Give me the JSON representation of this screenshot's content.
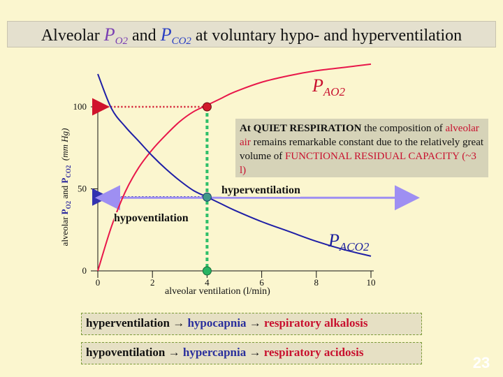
{
  "title": {
    "pre": "Alveolar",
    "sym1": "P",
    "sub1": "O2",
    "mid": "and",
    "sym2": "P",
    "sub2": "CO2",
    "post": "at voluntary hypo- and hyperventilation"
  },
  "colors": {
    "po2_curve": "#e8174a",
    "pco2_curve": "#1f1fa6",
    "dotted_red": "#d0132c",
    "dotted_blue": "#3232b0",
    "guide_green": "#2fbf6a",
    "arrow_violet": "#9e8ff2"
  },
  "chart_data": {
    "type": "line",
    "xlabel": "alveolar ventilation (l/min)",
    "ylabel": "alveolar PO2 and PCO2 (mm Hg)",
    "xlim": [
      0,
      10
    ],
    "ylim": [
      0,
      100
    ],
    "x_ticks": [
      "0",
      "2",
      "4",
      "6",
      "8",
      "10"
    ],
    "y_ticks": [
      "0",
      "50",
      "100"
    ],
    "series": [
      {
        "name": "PAO2",
        "x": [
          0,
          0.5,
          1,
          1.5,
          2,
          2.5,
          3,
          3.5,
          4,
          4.5,
          5,
          6,
          7,
          8,
          9,
          10
        ],
        "y": [
          0,
          27,
          48,
          63,
          74,
          83,
          91,
          97,
          101,
          105,
          109,
          115,
          119,
          122,
          124,
          126
        ]
      },
      {
        "name": "PACO2",
        "x": [
          0,
          0.5,
          1,
          1.5,
          2,
          2.5,
          3,
          3.5,
          4,
          4.5,
          5,
          6,
          7,
          8,
          9,
          10
        ],
        "y": [
          120,
          99,
          88,
          79,
          70,
          62,
          55,
          49,
          45,
          41,
          37,
          30,
          24,
          18,
          13,
          9
        ]
      }
    ],
    "operating_point_x": 4,
    "reference_lines": {
      "po2": 100,
      "pco2": 45
    },
    "annotations": {
      "pao2_label": "P",
      "pao2_sub": "AO2",
      "paco2_label": "P",
      "paco2_sub": "ACO2",
      "hyperventilation": "hyperventilation",
      "hypoventilation": "hypoventilation"
    }
  },
  "ylabel_parts": {
    "pre": "alveolar",
    "p1": "P",
    "s1": "O2",
    "and": "and",
    "p2": "P",
    "s2": "CO2",
    "unit": "(mm Hg)"
  },
  "note": {
    "t1": "At QUIET RESPIRATION",
    "t2": " the composition of ",
    "t3": "alveolar air",
    "t4": " remains remarkable constant due to the relatively great volume of ",
    "t5": "FUNCTIONAL RESIDUAL CAPACITY",
    "t6": "  (~3 l)"
  },
  "box1": {
    "a": "hyperventilation",
    "arrow1": " → ",
    "b": "hypocapnia",
    "arrow2": " → ",
    "c": "respiratory alkalosis"
  },
  "box2": {
    "a": "hypoventilation",
    "arrow1": " → ",
    "b": "hypercapnia",
    "arrow2": " → ",
    "c": "respiratory acidosis"
  },
  "page_number": "23"
}
